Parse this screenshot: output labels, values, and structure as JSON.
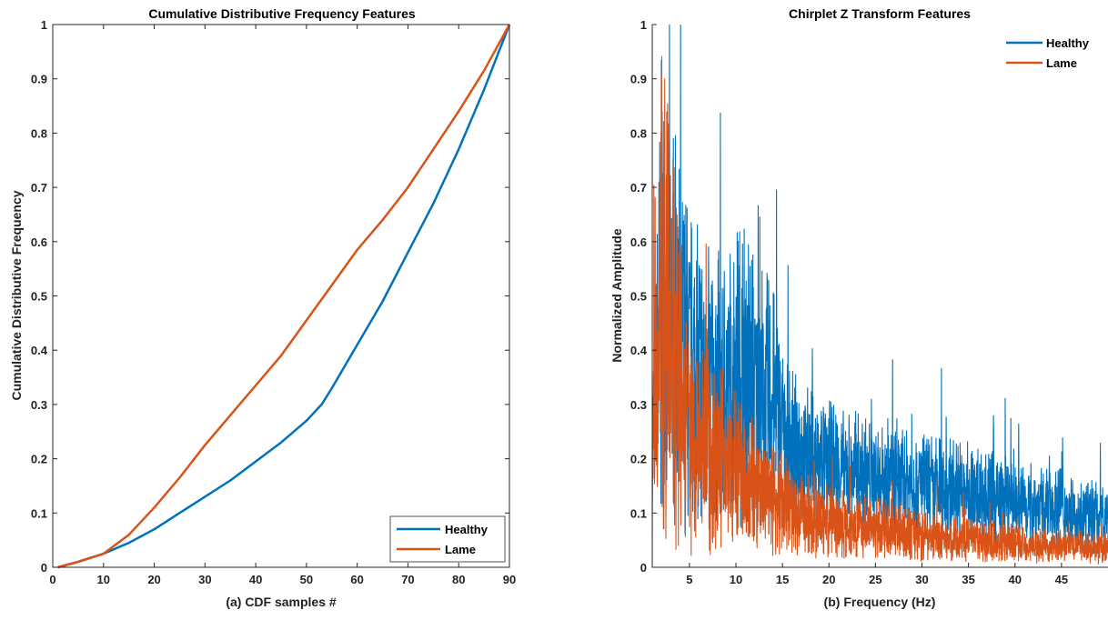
{
  "colors": {
    "healthy": "#0072BD",
    "lame": "#D95319",
    "axis": "#262626",
    "background": "#ffffff"
  },
  "chart_data": [
    {
      "type": "line",
      "title": "Cumulative Distributive Frequency Features",
      "xlabel": "(a) CDF samples #",
      "ylabel": "Cumulative Distributive Frequency",
      "xlim": [
        0,
        90
      ],
      "ylim": [
        0,
        1
      ],
      "xticks": [
        0,
        10,
        20,
        30,
        40,
        50,
        60,
        70,
        80,
        90
      ],
      "yticks": [
        0,
        0.1,
        0.2,
        0.3,
        0.4,
        0.5,
        0.6,
        0.7,
        0.8,
        0.9,
        1
      ],
      "ytick_labels": [
        "0",
        "0.1",
        "0.2",
        "0.3",
        "0.4",
        "0.5",
        "0.6",
        "0.7",
        "0.8",
        "0.9",
        "1"
      ],
      "legend_position": "bottom-right",
      "grid": false,
      "series": [
        {
          "name": "Healthy",
          "x": [
            1,
            5,
            10,
            15,
            20,
            25,
            30,
            35,
            40,
            45,
            50,
            53,
            55,
            60,
            65,
            70,
            75,
            80,
            85,
            90
          ],
          "y": [
            0,
            0.01,
            0.025,
            0.045,
            0.07,
            0.1,
            0.13,
            0.16,
            0.195,
            0.23,
            0.27,
            0.3,
            0.33,
            0.41,
            0.49,
            0.58,
            0.67,
            0.77,
            0.88,
            1.0
          ]
        },
        {
          "name": "Lame",
          "x": [
            1,
            5,
            10,
            15,
            20,
            25,
            30,
            35,
            40,
            45,
            50,
            55,
            60,
            65,
            70,
            75,
            80,
            85,
            90
          ],
          "y": [
            0,
            0.01,
            0.025,
            0.06,
            0.11,
            0.165,
            0.225,
            0.28,
            0.335,
            0.39,
            0.455,
            0.52,
            0.585,
            0.64,
            0.7,
            0.77,
            0.84,
            0.915,
            1.0
          ]
        }
      ]
    },
    {
      "type": "line",
      "title": "Chirplet Z Transform Features",
      "xlabel": "(b) Frequency (Hz)",
      "ylabel": "Normalized Amplitude",
      "xlim": [
        1,
        50
      ],
      "ylim": [
        0,
        1
      ],
      "xticks": [
        5,
        10,
        15,
        20,
        25,
        30,
        35,
        40,
        45
      ],
      "yticks": [
        0,
        0.1,
        0.2,
        0.3,
        0.4,
        0.5,
        0.6,
        0.7,
        0.8,
        0.9,
        1
      ],
      "ytick_labels": [
        "0",
        "0.1",
        "0.2",
        "0.3",
        "0.4",
        "0.5",
        "0.6",
        "0.7",
        "0.8",
        "0.9",
        "1"
      ],
      "legend_position": "top-right",
      "grid": false,
      "series": [
        {
          "name": "Healthy",
          "x": [
            1,
            2,
            3,
            4,
            5,
            6,
            7,
            8,
            9,
            10,
            11,
            12,
            13,
            14,
            15,
            16,
            17,
            18,
            19,
            20,
            22,
            24,
            26,
            28,
            30,
            32,
            34,
            36,
            38,
            40,
            42,
            44,
            46,
            48,
            50
          ],
          "y": [
            0.2,
            0.5,
            0.45,
            0.4,
            0.37,
            0.35,
            0.34,
            0.33,
            0.34,
            0.35,
            0.36,
            0.33,
            0.32,
            0.3,
            0.25,
            0.22,
            0.21,
            0.2,
            0.2,
            0.19,
            0.18,
            0.17,
            0.16,
            0.155,
            0.15,
            0.145,
            0.14,
            0.135,
            0.125,
            0.12,
            0.115,
            0.11,
            0.1,
            0.095,
            0.09
          ],
          "spread": [
            0.15,
            0.45,
            0.4,
            0.35,
            0.3,
            0.28,
            0.27,
            0.26,
            0.27,
            0.28,
            0.3,
            0.26,
            0.24,
            0.22,
            0.18,
            0.15,
            0.14,
            0.13,
            0.13,
            0.12,
            0.12,
            0.11,
            0.1,
            0.1,
            0.1,
            0.1,
            0.1,
            0.09,
            0.09,
            0.08,
            0.08,
            0.08,
            0.07,
            0.07,
            0.07
          ]
        },
        {
          "name": "Lame",
          "x": [
            1,
            2,
            3,
            4,
            5,
            6,
            7,
            8,
            9,
            10,
            11,
            12,
            13,
            14,
            15,
            16,
            17,
            18,
            19,
            20,
            22,
            24,
            26,
            28,
            30,
            32,
            34,
            36,
            38,
            40,
            42,
            44,
            46,
            48,
            50
          ],
          "y": [
            0.2,
            0.5,
            0.42,
            0.33,
            0.27,
            0.24,
            0.22,
            0.2,
            0.19,
            0.18,
            0.16,
            0.15,
            0.14,
            0.13,
            0.12,
            0.11,
            0.1,
            0.095,
            0.09,
            0.085,
            0.08,
            0.075,
            0.07,
            0.065,
            0.06,
            0.055,
            0.05,
            0.05,
            0.045,
            0.045,
            0.04,
            0.04,
            0.04,
            0.035,
            0.035
          ],
          "spread": [
            0.15,
            0.45,
            0.4,
            0.3,
            0.25,
            0.22,
            0.2,
            0.18,
            0.17,
            0.16,
            0.14,
            0.13,
            0.12,
            0.11,
            0.1,
            0.09,
            0.085,
            0.08,
            0.075,
            0.07,
            0.065,
            0.06,
            0.055,
            0.05,
            0.05,
            0.045,
            0.04,
            0.04,
            0.04,
            0.035,
            0.035,
            0.03,
            0.03,
            0.03,
            0.03
          ]
        }
      ]
    }
  ]
}
